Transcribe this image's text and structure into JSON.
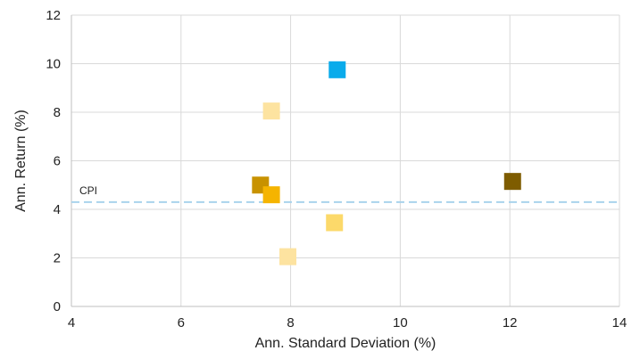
{
  "chart_data": {
    "type": "scatter",
    "title": "",
    "xlabel": "Ann. Standard Deviation (%)",
    "ylabel": "Ann. Return (%)",
    "xlim": [
      4,
      14
    ],
    "ylim": [
      0,
      12
    ],
    "xticks": [
      4,
      6,
      8,
      10,
      12,
      14
    ],
    "yticks": [
      0,
      2,
      4,
      6,
      8,
      10,
      12
    ],
    "grid": true,
    "legend": "none",
    "reference_line": {
      "label": "CPI",
      "y": 4.3,
      "style": "dashed",
      "color": "#a9d3ec"
    },
    "points": [
      {
        "x": 8.85,
        "y": 9.75,
        "color": "#0aabeb"
      },
      {
        "x": 7.65,
        "y": 8.05,
        "color": "#fde3a0"
      },
      {
        "x": 7.45,
        "y": 5.0,
        "color": "#c89200"
      },
      {
        "x": 7.65,
        "y": 4.6,
        "color": "#f5b400"
      },
      {
        "x": 8.8,
        "y": 3.45,
        "color": "#fcd96a"
      },
      {
        "x": 7.95,
        "y": 2.05,
        "color": "#fde3a0"
      },
      {
        "x": 12.05,
        "y": 5.15,
        "color": "#7e5c00"
      }
    ]
  }
}
